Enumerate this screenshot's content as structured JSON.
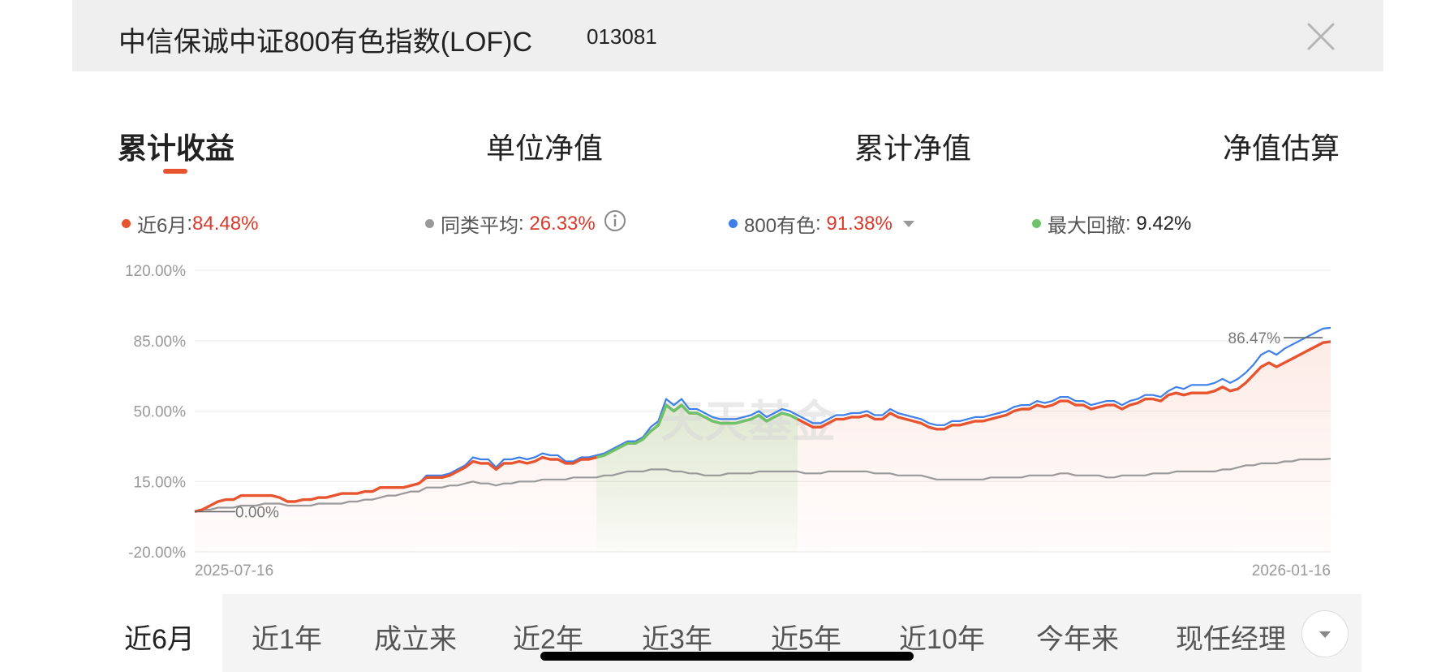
{
  "header": {
    "fund_name": "中信保诚中证800有色指数(LOF)C",
    "fund_code": "013081",
    "close_icon": "close-icon"
  },
  "tabs": [
    {
      "label": "累计收益",
      "active": true
    },
    {
      "label": "单位净值",
      "active": false
    },
    {
      "label": "累计净值",
      "active": false
    },
    {
      "label": "净值估算",
      "active": false
    }
  ],
  "legend": [
    {
      "name": "近6月",
      "value": "84.48%",
      "color": "#e8542f",
      "value_color": "#d93a2c"
    },
    {
      "name": "同类平均",
      "value": "26.33%",
      "color": "#999999",
      "value_color": "#d93a2c",
      "icon": "info-icon"
    },
    {
      "name": "800有色",
      "value": "91.38%",
      "color": "#3f7fe8",
      "value_color": "#d93a2c",
      "icon": "caret-down-icon"
    },
    {
      "name": "最大回撤",
      "value": "9.42%",
      "color": "#6cc36a",
      "value_color": "#222222"
    }
  ],
  "chart_data": {
    "type": "line",
    "x_start_label": "2025-07-16",
    "x_end_label": "2026-01-16",
    "y_ticks": [
      "120.00%",
      "85.00%",
      "50.00%",
      "15.00%",
      "-20.00%"
    ],
    "ylim": [
      -20,
      120
    ],
    "grid": true,
    "start_annotation": "0.00%",
    "peak_annotation": "86.47%",
    "watermark": "天天基金",
    "drawdown_range_index": [
      52,
      78
    ],
    "series": [
      {
        "name": "近6月",
        "color": "#e8542f",
        "values": [
          0,
          1,
          3,
          5,
          6,
          6,
          8,
          8,
          8,
          8,
          8,
          7,
          5,
          5,
          6,
          6,
          7,
          7,
          8,
          9,
          9,
          9,
          10,
          10,
          12,
          12,
          12,
          12,
          13,
          14,
          17,
          17,
          17,
          18,
          20,
          22,
          25,
          24,
          24,
          21,
          24,
          24,
          25,
          24,
          25,
          27,
          26,
          26,
          24,
          24,
          26,
          26,
          27,
          28,
          30,
          32,
          34,
          34,
          36,
          40,
          43,
          53,
          50,
          53,
          49,
          49,
          47,
          45,
          44,
          44,
          44,
          45,
          46,
          48,
          45,
          47,
          49,
          48,
          46,
          44,
          42,
          42,
          44,
          46,
          46,
          47,
          47,
          48,
          46,
          46,
          49,
          47,
          46,
          45,
          44,
          42,
          41,
          41,
          43,
          43,
          44,
          45,
          45,
          46,
          47,
          48,
          50,
          51,
          51,
          53,
          52,
          53,
          55,
          55,
          53,
          53,
          51,
          52,
          53,
          53,
          51,
          53,
          54,
          56,
          56,
          55,
          58,
          59,
          58,
          59,
          59,
          59,
          60,
          62,
          60,
          61,
          64,
          68,
          72,
          74,
          72,
          74,
          76,
          78,
          80,
          82,
          84,
          84.48
        ]
      },
      {
        "name": "800有色",
        "color": "#3f7fe8",
        "values": [
          0,
          1,
          3,
          5,
          6,
          6,
          8,
          8,
          8,
          8,
          8,
          7,
          5,
          5,
          6,
          6,
          7,
          7,
          8,
          9,
          9,
          9,
          10,
          10,
          12,
          12,
          12,
          12,
          13,
          14,
          18,
          18,
          18,
          19,
          21,
          23,
          27,
          26,
          26,
          22,
          26,
          26,
          27,
          26,
          27,
          29,
          28,
          28,
          25,
          25,
          27,
          27,
          28,
          29,
          31,
          33,
          35,
          35,
          37,
          42,
          45,
          56,
          53,
          56,
          51,
          51,
          49,
          47,
          46,
          46,
          46,
          47,
          48,
          50,
          47,
          49,
          51,
          50,
          48,
          46,
          44,
          44,
          46,
          48,
          48,
          49,
          49,
          50,
          48,
          48,
          51,
          49,
          48,
          47,
          46,
          44,
          43,
          43,
          45,
          45,
          46,
          47,
          47,
          48,
          49,
          50,
          52,
          53,
          53,
          55,
          54,
          55,
          57,
          57,
          55,
          55,
          53,
          54,
          55,
          55,
          53,
          55,
          56,
          58,
          58,
          57,
          60,
          62,
          61,
          63,
          63,
          63,
          64,
          66,
          64,
          66,
          69,
          73,
          78,
          80,
          78,
          81,
          83,
          85,
          87,
          89,
          91,
          91.38
        ]
      },
      {
        "name": "同类平均",
        "color": "#999999",
        "values": [
          0,
          1,
          1,
          2,
          2,
          2,
          3,
          3,
          3,
          4,
          4,
          4,
          3,
          3,
          3,
          3,
          4,
          4,
          4,
          4,
          5,
          5,
          6,
          6,
          7,
          8,
          8,
          9,
          10,
          10,
          12,
          12,
          12,
          13,
          13,
          14,
          15,
          14,
          14,
          13,
          14,
          14,
          15,
          15,
          15,
          16,
          16,
          16,
          16,
          17,
          17,
          17,
          17,
          18,
          18,
          19,
          20,
          20,
          20,
          21,
          21,
          21,
          20,
          20,
          19,
          19,
          18,
          18,
          18,
          19,
          19,
          19,
          19,
          20,
          20,
          20,
          20,
          20,
          20,
          19,
          19,
          19,
          20,
          20,
          20,
          20,
          20,
          20,
          19,
          19,
          19,
          18,
          18,
          18,
          18,
          17,
          16,
          16,
          16,
          16,
          16,
          16,
          16,
          17,
          17,
          17,
          17,
          17,
          18,
          18,
          18,
          18,
          19,
          19,
          18,
          18,
          18,
          18,
          17,
          17,
          18,
          18,
          18,
          18,
          19,
          19,
          19,
          20,
          20,
          20,
          20,
          20,
          20,
          21,
          21,
          22,
          23,
          23,
          24,
          24,
          24,
          25,
          25,
          26,
          26,
          26,
          26,
          26.33
        ]
      }
    ]
  },
  "periods": [
    {
      "label": "近6月",
      "active": true
    },
    {
      "label": "近1年",
      "active": false
    },
    {
      "label": "成立来",
      "active": false
    },
    {
      "label": "近2年",
      "active": false
    },
    {
      "label": "近3年",
      "active": false
    },
    {
      "label": "近5年",
      "active": false
    },
    {
      "label": "近10年",
      "active": false
    },
    {
      "label": "今年来",
      "active": false
    },
    {
      "label": "现任经理",
      "active": false
    }
  ],
  "periods_more_icon": "chevron-down-icon"
}
